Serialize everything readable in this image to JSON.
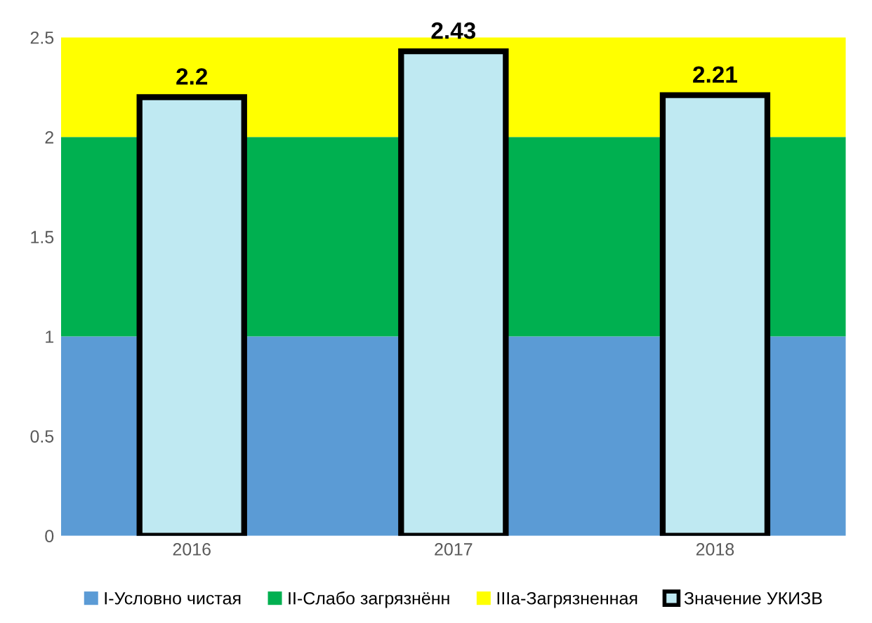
{
  "chart_data": {
    "type": "bar",
    "categories": [
      "2016",
      "2017",
      "2018"
    ],
    "series": [
      {
        "name": "Значение УКИЗВ",
        "color": "#bfe9f2",
        "values": [
          2.2,
          2.43,
          2.21
        ]
      }
    ],
    "bands": [
      {
        "axis": "y",
        "from": 0,
        "to": 1,
        "label": "I-Условно чистая",
        "color": "#5b9bd5"
      },
      {
        "axis": "y",
        "from": 1,
        "to": 2,
        "label": "II-Слабо загрязнённ",
        "color": "#00b050"
      },
      {
        "axis": "y",
        "from": 2,
        "to": 2.5,
        "label": "IIIa-Загрязненная",
        "color": "#ffff00"
      }
    ],
    "ylim": [
      0,
      2.5
    ],
    "yticks": [
      0,
      0.5,
      1,
      1.5,
      2,
      2.5
    ],
    "data_labels": true,
    "legend": "bottom",
    "grid": false
  }
}
